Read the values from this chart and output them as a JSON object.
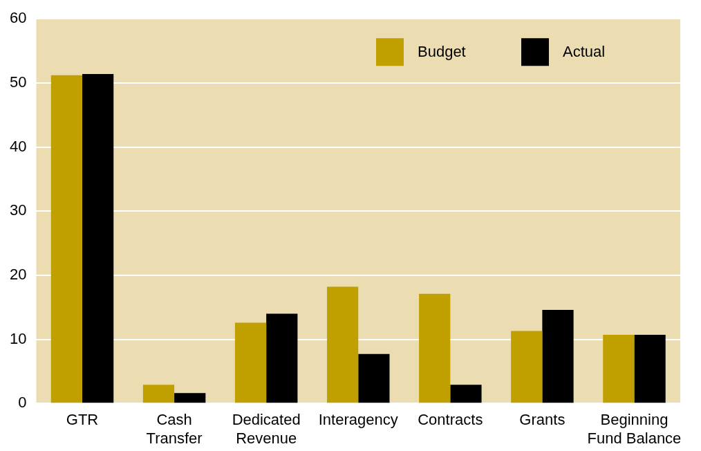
{
  "chart_data": {
    "type": "bar",
    "categories": [
      "GTR",
      "Cash Transfer",
      "Dedicated Revenue",
      "Interagency",
      "Contracts",
      "Grants",
      "Beginning Fund Balance"
    ],
    "series": [
      {
        "name": "Budget",
        "color": "#bfa000",
        "values": [
          51.2,
          2.9,
          12.6,
          18.2,
          17.1,
          11.3,
          10.7
        ]
      },
      {
        "name": "Actual",
        "color": "#000000",
        "values": [
          51.4,
          1.6,
          14.0,
          7.7,
          2.9,
          14.6,
          10.7
        ]
      }
    ],
    "ylim": [
      0,
      60
    ],
    "yticks": [
      0,
      10,
      20,
      30,
      40,
      50,
      60
    ],
    "grid": "y",
    "legend": "top right"
  }
}
